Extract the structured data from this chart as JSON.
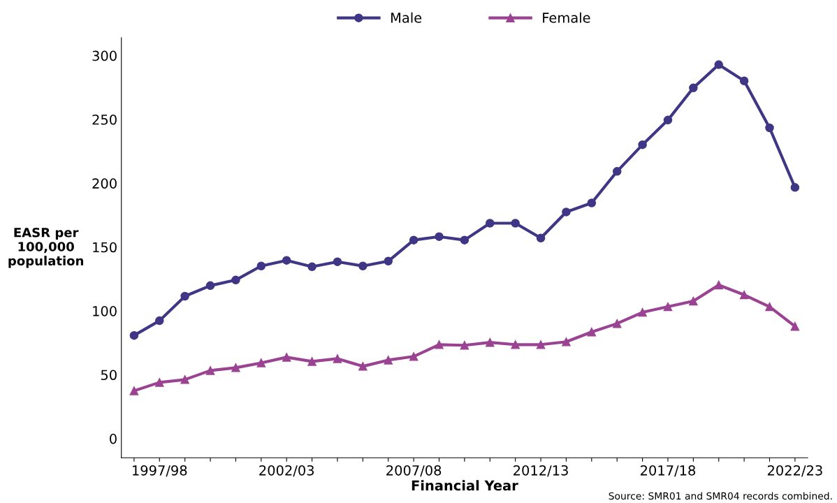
{
  "chart_data": {
    "type": "line",
    "xlabel": "Financial Year",
    "ylabel": "EASR per\n100,000\npopulation",
    "categories": [
      null,
      "1997/98",
      null,
      null,
      null,
      null,
      "2002/03",
      null,
      null,
      null,
      null,
      "2007/08",
      null,
      null,
      null,
      null,
      "2012/13",
      null,
      null,
      null,
      null,
      "2017/18",
      null,
      null,
      null,
      null,
      "2022/23"
    ],
    "series": [
      {
        "name": "Male",
        "color": "#3f3685",
        "marker": "circle",
        "values": [
          80.8,
          92.3,
          111.5,
          119.8,
          124.2,
          135.2,
          139.6,
          134.6,
          138.5,
          135.2,
          139,
          155.5,
          158.2,
          155.5,
          168.7,
          168.7,
          157.1,
          177.5,
          184.6,
          209.3,
          230.2,
          249.5,
          274.7,
          292.9,
          280.2,
          243.4,
          196.7
        ]
      },
      {
        "name": "Female",
        "color": "#9b4393",
        "marker": "triangle",
        "values": [
          37.4,
          44,
          46.2,
          53.3,
          55.5,
          59.3,
          63.7,
          60.4,
          62.6,
          56.6,
          61.5,
          64.3,
          73.6,
          73.1,
          75.3,
          73.6,
          73.6,
          75.8,
          83.5,
          90.1,
          98.9,
          103.3,
          107.7,
          120.3,
          112.6,
          103.3,
          87.9
        ]
      }
    ],
    "ylim": [
      -15,
      314
    ],
    "yticks": [
      0,
      50,
      100,
      150,
      200,
      250,
      300
    ],
    "grid": false,
    "legend": "top",
    "annotations": [
      "Source: SMR01 and SMR04 records combined."
    ]
  }
}
